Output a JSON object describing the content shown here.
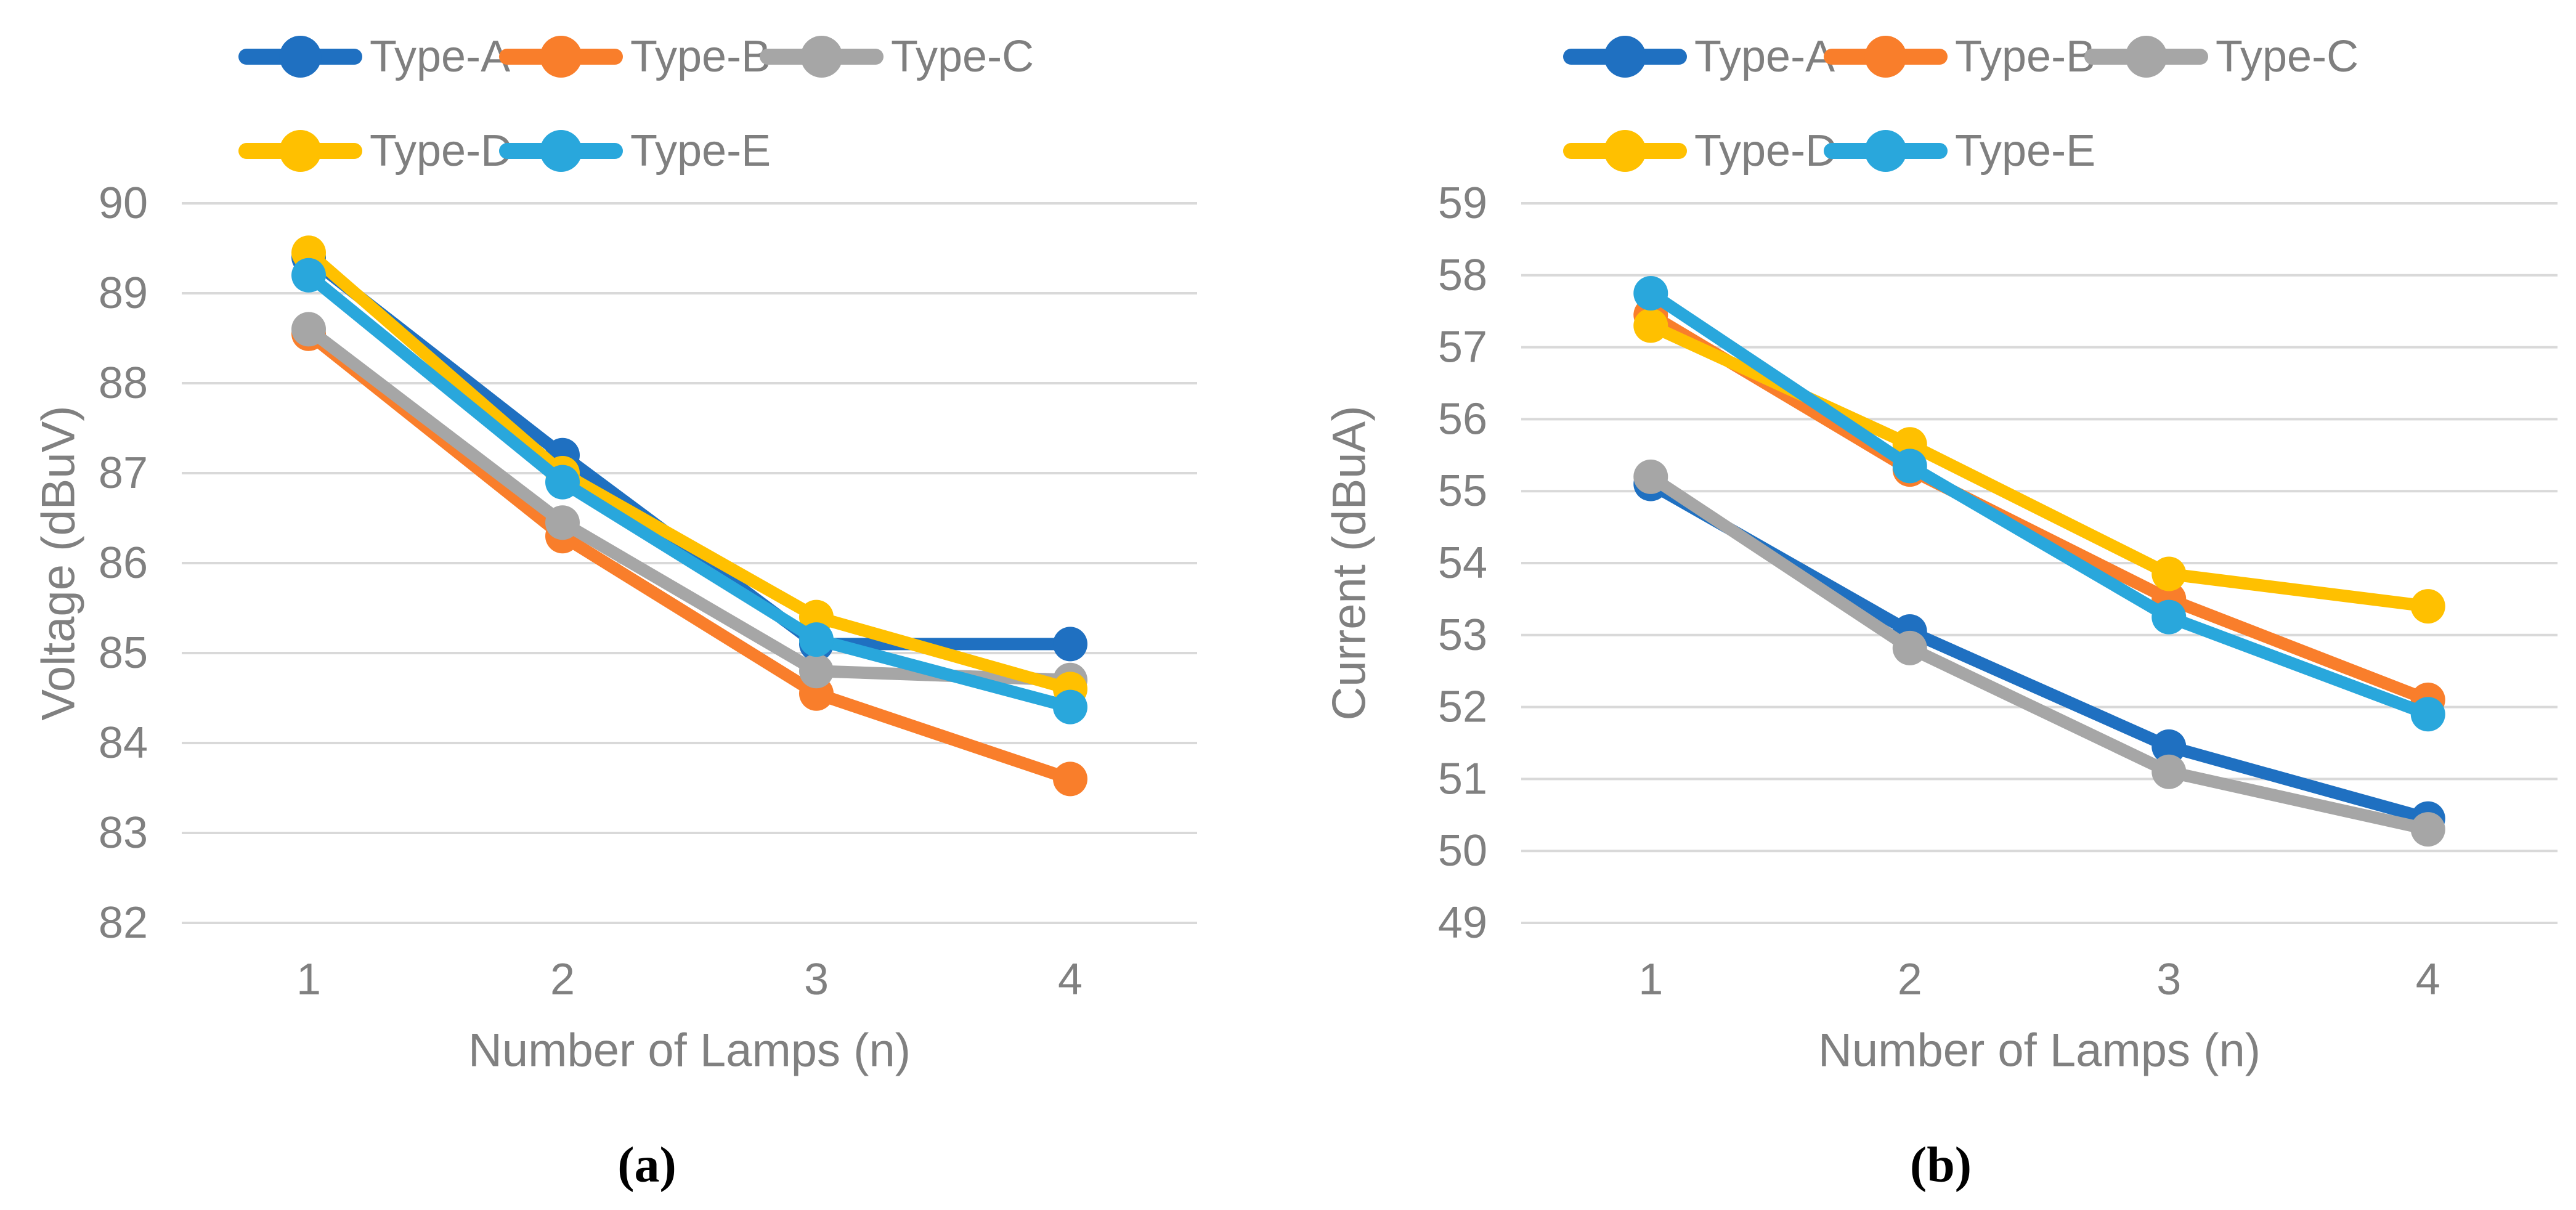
{
  "style": {
    "background": "#FFFFFF",
    "gridline_color": "#D9D9D9",
    "axis_text_color": "#808080",
    "legend_text_color": "#7F7F7F",
    "caption_color": "#000000"
  },
  "chart_data": [
    {
      "type": "line",
      "panel": "a",
      "caption": "(a)",
      "xlabel": "Number of Lamps (n)",
      "ylabel": "Voltage (dBuV)",
      "categories": [
        1,
        2,
        3,
        4
      ],
      "ylim": [
        82,
        90
      ],
      "yticks": [
        90,
        89,
        88,
        87,
        86,
        85,
        84,
        83,
        82
      ],
      "grid": true,
      "legend_position": "top-left-two-rows",
      "series": [
        {
          "name": "Type-A",
          "color": "#1F70C1",
          "values": [
            89.4,
            87.2,
            85.1,
            85.1
          ]
        },
        {
          "name": "Type-B",
          "color": "#F97E2B",
          "values": [
            88.55,
            86.3,
            84.55,
            83.6
          ]
        },
        {
          "name": "Type-C",
          "color": "#A6A6A6",
          "values": [
            88.6,
            86.45,
            84.8,
            84.7
          ]
        },
        {
          "name": "Type-D",
          "color": "#FFC000",
          "values": [
            89.45,
            87.0,
            85.4,
            84.6
          ]
        },
        {
          "name": "Type-E",
          "color": "#29A7DC",
          "values": [
            89.2,
            86.9,
            85.15,
            84.4
          ]
        }
      ]
    },
    {
      "type": "line",
      "panel": "b",
      "caption": "(b)",
      "xlabel": "Number of Lamps (n)",
      "ylabel": "Current (dBuA)",
      "categories": [
        1,
        2,
        3,
        4
      ],
      "ylim": [
        49,
        59
      ],
      "yticks": [
        59,
        58,
        57,
        56,
        55,
        54,
        53,
        52,
        51,
        50,
        49
      ],
      "grid": true,
      "legend_position": "top-left-two-rows",
      "series": [
        {
          "name": "Type-A",
          "color": "#1F70C1",
          "values": [
            55.1,
            53.05,
            51.45,
            50.45
          ]
        },
        {
          "name": "Type-B",
          "color": "#F97E2B",
          "values": [
            57.45,
            55.3,
            53.5,
            52.1
          ]
        },
        {
          "name": "Type-C",
          "color": "#A6A6A6",
          "values": [
            55.2,
            52.82,
            51.1,
            50.3
          ]
        },
        {
          "name": "Type-D",
          "color": "#FFC000",
          "values": [
            57.3,
            55.65,
            53.85,
            53.4
          ]
        },
        {
          "name": "Type-E",
          "color": "#29A7DC",
          "values": [
            57.75,
            55.35,
            53.25,
            51.9
          ]
        }
      ]
    }
  ]
}
